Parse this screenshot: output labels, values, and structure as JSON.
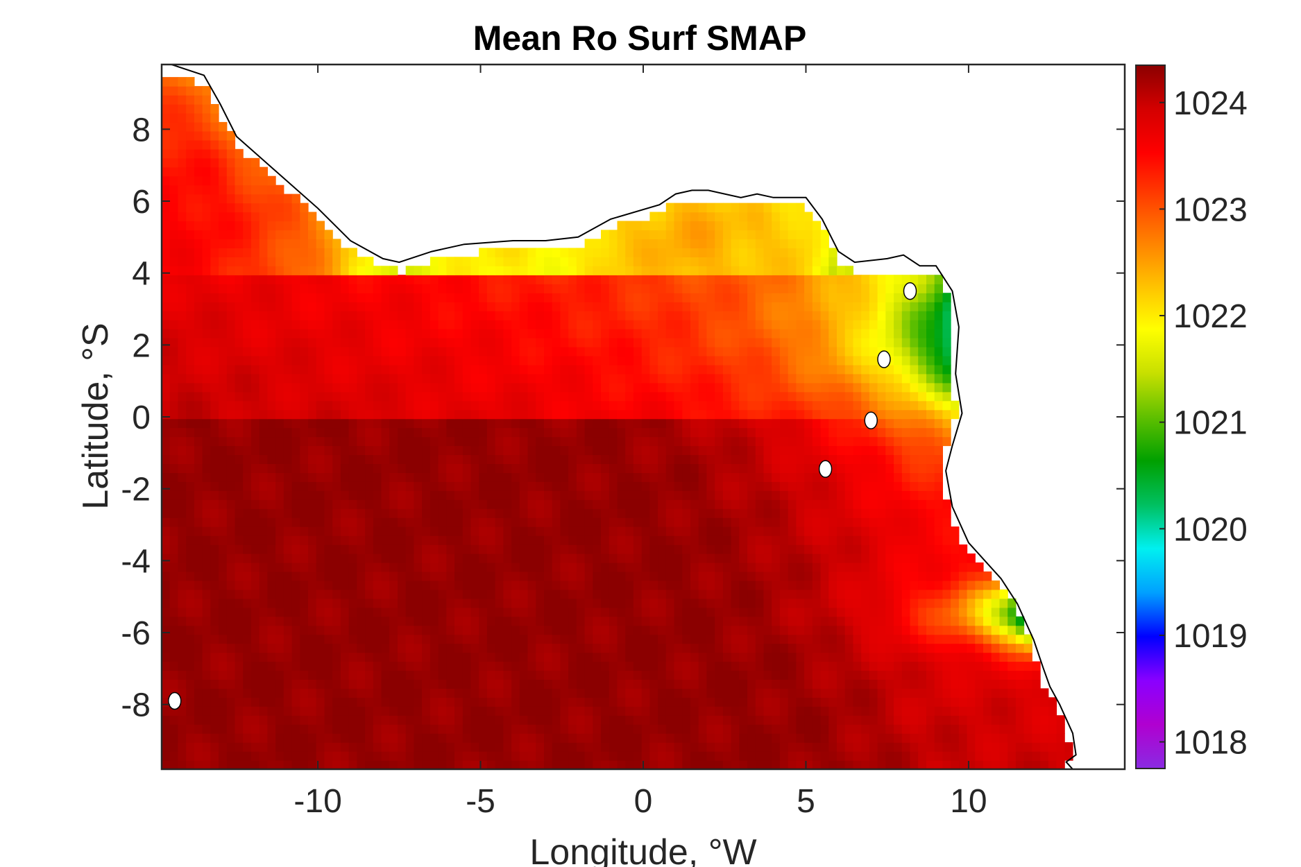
{
  "chart_data": {
    "type": "heatmap",
    "title": "Mean Ro Surf SMAP",
    "xlabel": "Longitude, °W",
    "ylabel": "Latitude, °S",
    "xlim": [
      -14.8,
      14.8
    ],
    "ylim": [
      -9.8,
      9.8
    ],
    "xticks": [
      -10,
      -5,
      0,
      5,
      10
    ],
    "xtick_labels": [
      "-10",
      "-5",
      "0",
      "5",
      "10"
    ],
    "yticks": [
      -8,
      -6,
      -4,
      -2,
      0,
      2,
      4,
      6,
      8
    ],
    "ytick_labels": [
      "-8",
      "-6",
      "-4",
      "-2",
      "0",
      "2",
      "4",
      "6",
      "8"
    ],
    "grid": false,
    "colorbar": {
      "range": [
        1017.75,
        1024.35
      ],
      "ticks": [
        1018,
        1019,
        1020,
        1021,
        1022,
        1023,
        1024
      ],
      "tick_labels": [
        "1018",
        "1019",
        "1020",
        "1021",
        "1022",
        "1023",
        "1024"
      ],
      "colormap": [
        "#8a2be2",
        "#b000d0",
        "#8a00ff",
        "#0000ff",
        "#00a0ff",
        "#00f0f0",
        "#00c060",
        "#00a000",
        "#60c000",
        "#c8e000",
        "#ffff00",
        "#ffc000",
        "#ff8000",
        "#ff4000",
        "#ff0000",
        "#d40000",
        "#8b0000"
      ]
    },
    "coastline_lon": [
      -14.5,
      -13.5,
      -13.0,
      -12.5,
      -11.5,
      -10.0,
      -9.0,
      -8.0,
      -7.5,
      -6.5,
      -5.5,
      -4.0,
      -3.0,
      -2.0,
      -1.0,
      0.5,
      1.0,
      1.5,
      2.0,
      3.0,
      3.5,
      4.0,
      5.0,
      5.5,
      6.0,
      6.5,
      7.5,
      8.0,
      8.5,
      9.0,
      9.5,
      9.7,
      9.6,
      9.8,
      9.5,
      9.3,
      9.5,
      10.0,
      11.0,
      11.5,
      12.0,
      12.3,
      12.5,
      12.8,
      13.2,
      13.3,
      13.0,
      13.2
    ],
    "coastline_lat": [
      9.8,
      9.5,
      8.7,
      7.8,
      7.0,
      5.8,
      4.9,
      4.4,
      4.3,
      4.6,
      4.8,
      4.9,
      4.9,
      5.0,
      5.5,
      5.9,
      6.2,
      6.3,
      6.3,
      6.1,
      6.2,
      6.1,
      6.1,
      5.5,
      4.6,
      4.3,
      4.4,
      4.5,
      4.2,
      4.2,
      3.5,
      2.5,
      1.2,
      0.1,
      -0.8,
      -1.5,
      -2.5,
      -3.5,
      -4.5,
      -5.2,
      -6.2,
      -7.0,
      -7.5,
      -8.0,
      -8.8,
      -9.4,
      -9.6,
      -9.8
    ],
    "islands": [
      {
        "lon": 7.0,
        "lat": -0.1
      },
      {
        "lon": 5.6,
        "lat": -1.45
      },
      {
        "lon": 7.4,
        "lat": 1.6
      },
      {
        "lon": 8.2,
        "lat": 3.5
      },
      {
        "lon": -14.4,
        "lat": -7.9
      }
    ]
  }
}
